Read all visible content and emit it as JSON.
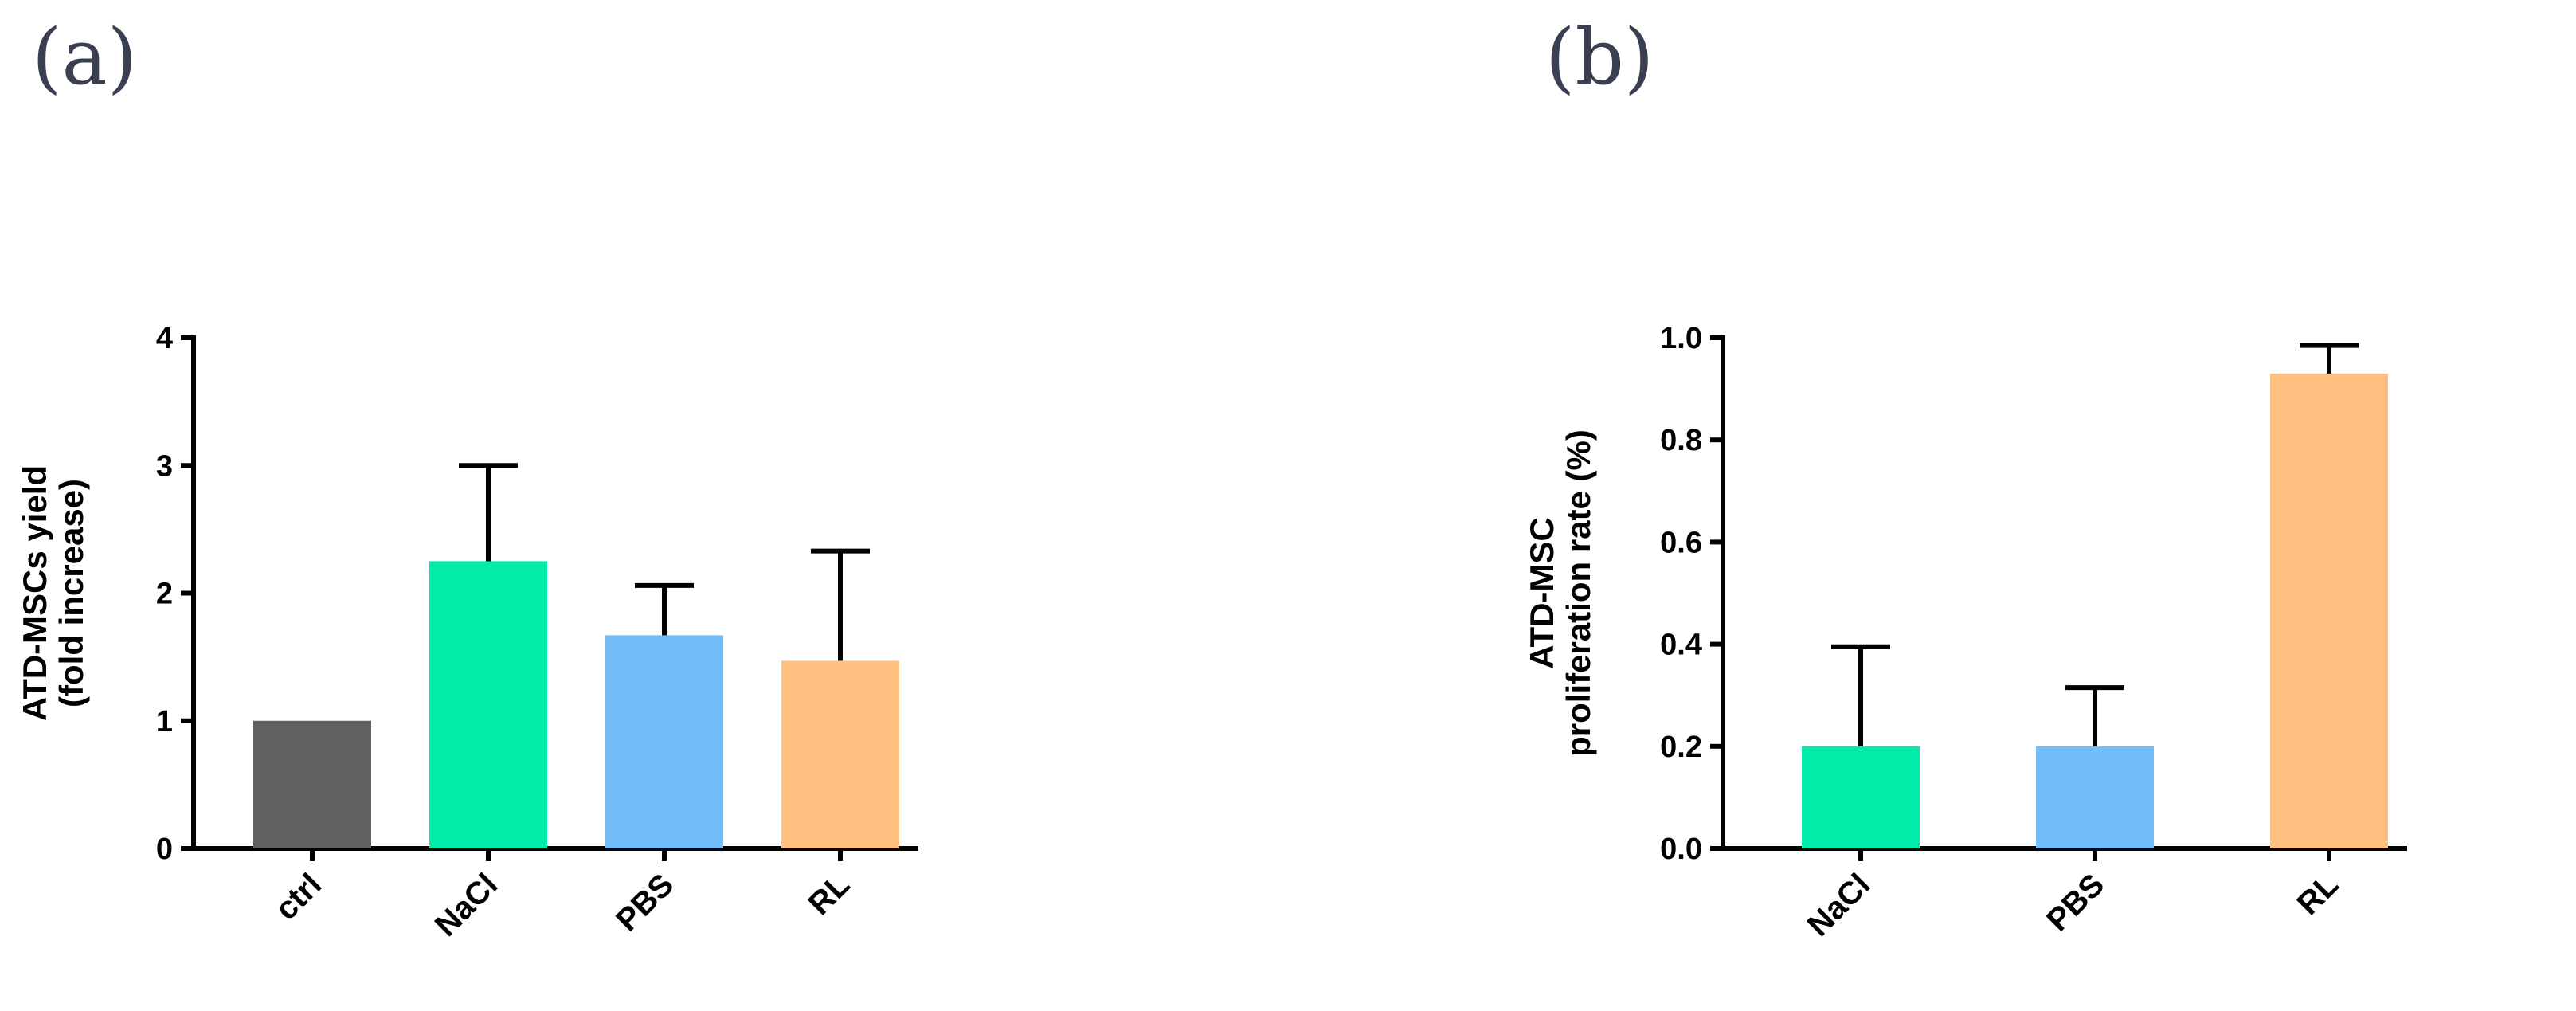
{
  "panel_labels": [
    "(a)",
    "(b)"
  ],
  "chart_data": [
    {
      "type": "bar",
      "panel": "(a)",
      "categories": [
        "ctrl",
        "NaCl",
        "PBS",
        "RL"
      ],
      "values": [
        1.0,
        2.25,
        1.67,
        1.47
      ],
      "error_upper": [
        0,
        0.75,
        0.39,
        0.86
      ],
      "colors": [
        "#616161",
        "#00ECA8",
        "#73BDF8",
        "#FFC080"
      ],
      "ylabel_lines": [
        "ATD-MSCs yield",
        "(fold increase)"
      ],
      "xlabel": "",
      "ylim": [
        0,
        4
      ],
      "yticks": [
        "0",
        "1",
        "2",
        "3",
        "4"
      ],
      "grid": false
    },
    {
      "type": "bar",
      "panel": "(b)",
      "categories": [
        "NaCl",
        "PBS",
        "RL"
      ],
      "values": [
        0.2,
        0.2,
        0.93
      ],
      "error_upper": [
        0.195,
        0.115,
        0.055
      ],
      "colors": [
        "#00ECA8",
        "#73BDF8",
        "#FFC080"
      ],
      "ylabel_lines": [
        "ATD-MSC",
        "proliferation rate (%)"
      ],
      "xlabel": "",
      "ylim": [
        0,
        1.0
      ],
      "yticks": [
        "0.0",
        "0.2",
        "0.4",
        "0.6",
        "0.8",
        "1.0"
      ],
      "grid": false
    }
  ]
}
